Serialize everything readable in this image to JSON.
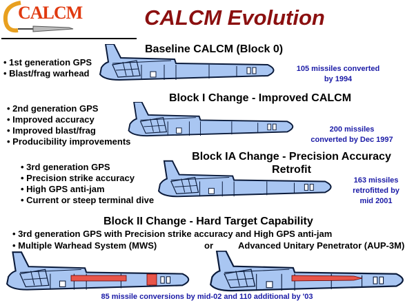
{
  "logo": {
    "text": "CALCM"
  },
  "title": "CALCM Evolution",
  "colors": {
    "title": "#8b1010",
    "annotation": "#1a1aa6",
    "missile_body": "#a9c6f2",
    "warhead": "#e8554a"
  },
  "block0": {
    "heading": "Baseline CALCM (Block 0)",
    "bullets": [
      "1st generation GPS",
      "Blast/frag warhead"
    ],
    "note": [
      "105 missiles converted",
      "by 1994"
    ]
  },
  "block1": {
    "heading": "Block I Change - Improved CALCM",
    "bullets": [
      "2nd generation GPS",
      "Improved accuracy",
      "Improved blast/frag",
      "Producibility improvements"
    ],
    "note": [
      "200 missiles",
      "converted by Dec 1997"
    ]
  },
  "block1a": {
    "heading": [
      "Block IA Change - Precision Accuracy",
      "Retrofit"
    ],
    "bullets": [
      "3rd generation GPS",
      "Precision strike accuracy",
      "High GPS anti-jam",
      "Current or steep terminal dive"
    ],
    "note": [
      "163 missiles",
      "retrofitted by",
      "mid 2001"
    ]
  },
  "block2": {
    "heading": "Block II Change - Hard Target Capability",
    "bullets": [
      "3rd generation GPS with Precision strike accuracy and High GPS anti-jam",
      "Multiple Warhead System (MWS)",
      "Advanced Unitary Penetrator (AUP-3M)"
    ],
    "or": "or",
    "footer": "85 missile conversions by mid-02 and 110 additional by '03"
  }
}
